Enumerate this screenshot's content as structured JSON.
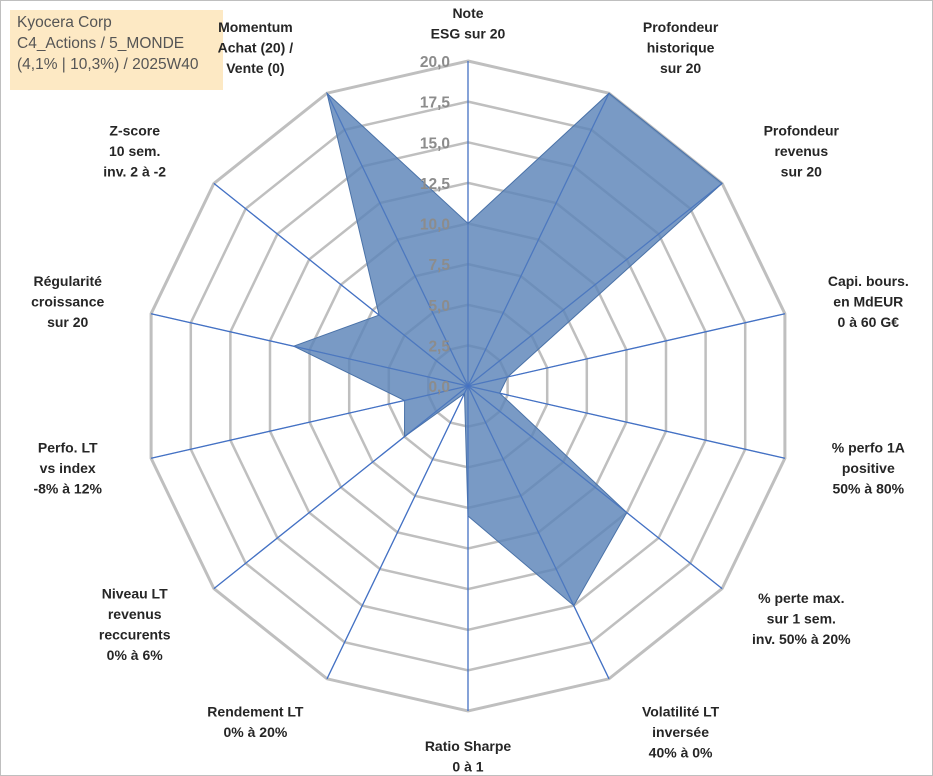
{
  "info": {
    "line1": "Kyocera Corp",
    "line2": "C4_Actions / 5_MONDE",
    "line3": "(4,1% | 10,3%) / 2025W40"
  },
  "colors": {
    "fill": "#5b84b8",
    "stroke": "#4a72a8",
    "spoke": "#4472c4",
    "grid": "#bfbfbf"
  },
  "chart_data": {
    "type": "radar",
    "title": "",
    "range": [
      0,
      20
    ],
    "ticks": [
      "0,0",
      "2,5",
      "5,0",
      "7,5",
      "10,0",
      "12,5",
      "15,0",
      "17,5",
      "20,0"
    ],
    "tick_values": [
      0,
      2.5,
      5,
      7.5,
      10,
      12.5,
      15,
      17.5,
      20
    ],
    "axes": [
      {
        "label": [
          "Note",
          "ESG sur 20"
        ],
        "value": 10
      },
      {
        "label": [
          "Profondeur",
          "historique",
          "sur 20"
        ],
        "value": 20
      },
      {
        "label": [
          "Profondeur",
          "revenus",
          "sur 20"
        ],
        "value": 20
      },
      {
        "label": [
          "Capi. bours.",
          "en MdEUR",
          "0 à 60 G€"
        ],
        "value": 2.5
      },
      {
        "label": [
          "% perfo 1A",
          "positive",
          "50% à 80%"
        ],
        "value": 2
      },
      {
        "label": [
          "% perte max.",
          "sur 1 sem.",
          "inv. 50% à 20%"
        ],
        "value": 12.5
      },
      {
        "label": [
          "Volatilité LT",
          "inversée",
          "40% à 0%"
        ],
        "value": 15
      },
      {
        "label": [
          "Ratio Sharpe",
          "0 à 1"
        ],
        "value": 8
      },
      {
        "label": [
          "Rendement LT",
          "0% à 20%"
        ],
        "value": 0.5
      },
      {
        "label": [
          "Niveau LT",
          "revenus",
          "reccurents",
          "0% à 6%"
        ],
        "value": 5
      },
      {
        "label": [
          "Perfo. LT",
          "vs index",
          "-8% à 12%"
        ],
        "value": 4
      },
      {
        "label": [
          "Régularité",
          "croissance",
          "sur 20"
        ],
        "value": 11
      },
      {
        "label": [
          "Z-score",
          "10 sem.",
          "inv. 2 à -2"
        ],
        "value": 7
      },
      {
        "label": [
          "Momentum",
          "Achat (20) /",
          "Vente (0)"
        ],
        "value": 20
      }
    ]
  }
}
